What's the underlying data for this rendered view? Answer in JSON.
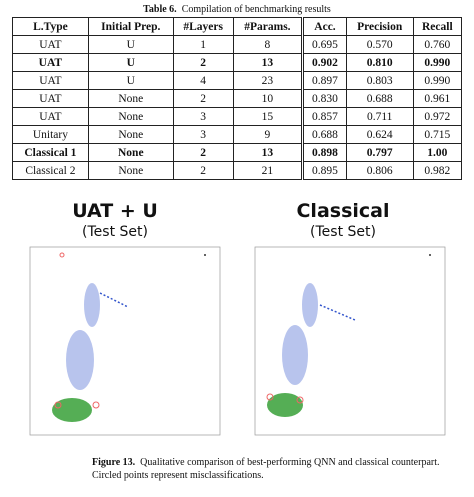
{
  "table_caption": {
    "label": "Table 6.",
    "text": "Compilation of benchmarking results"
  },
  "table": {
    "header": [
      "L.Type",
      "Initial Prep.",
      "#Layers",
      "#Params.",
      "Acc.",
      "Precision",
      "Recall"
    ],
    "rows": [
      {
        "cells": [
          "UAT",
          "U",
          "1",
          "8",
          "0.695",
          "0.570",
          "0.760"
        ],
        "bold": false
      },
      {
        "cells": [
          "UAT",
          "U",
          "2",
          "13",
          "0.902",
          "0.810",
          "0.990"
        ],
        "bold": true
      },
      {
        "cells": [
          "UAT",
          "U",
          "4",
          "23",
          "0.897",
          "0.803",
          "0.990"
        ],
        "bold": false
      },
      {
        "cells": [
          "UAT",
          "None",
          "2",
          "10",
          "0.830",
          "0.688",
          "0.961"
        ],
        "bold": false
      },
      {
        "cells": [
          "UAT",
          "None",
          "3",
          "15",
          "0.857",
          "0.711",
          "0.972"
        ],
        "bold": false
      },
      {
        "cells": [
          "Unitary",
          "None",
          "3",
          "9",
          "0.688",
          "0.624",
          "0.715"
        ],
        "bold": false
      },
      {
        "cells": [
          "Classical 1",
          "None",
          "2",
          "13",
          "0.898",
          "0.797",
          "1.00"
        ],
        "bold": true
      },
      {
        "cells": [
          "Classical 2",
          "None",
          "2",
          "21",
          "0.895",
          "0.806",
          "0.982"
        ],
        "bold": false
      }
    ]
  },
  "panels": [
    {
      "title": "UAT + U",
      "subtitle": "(Test Set)"
    },
    {
      "title": "Classical",
      "subtitle": "(Test Set)"
    }
  ],
  "figure_caption": {
    "label": "Figure 13.",
    "text": "Qualitative comparison of best-performing QNN and classical counterpart. Circled points represent misclassifications."
  }
}
